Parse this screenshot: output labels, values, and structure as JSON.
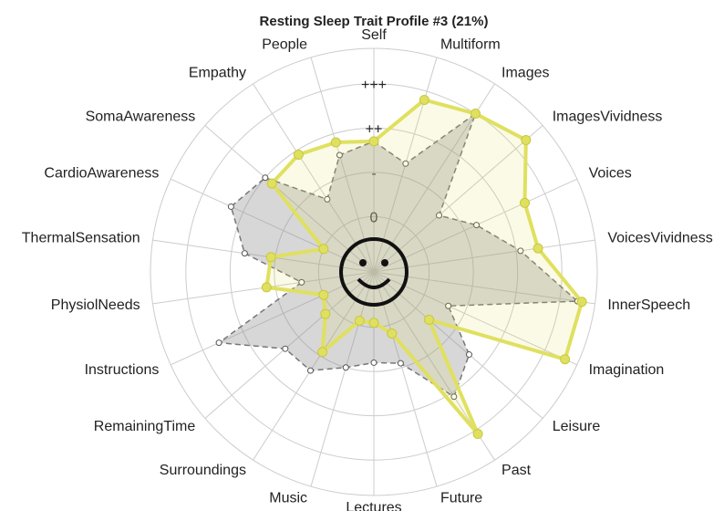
{
  "chart_data": {
    "type": "radar",
    "title": "Resting Sleep Trait Profile #3 (21%)",
    "categories": [
      "Self",
      "Multiform",
      "Images",
      "ImagesVividness",
      "Voices",
      "VoicesVividness",
      "InnerSpeech",
      "Imagination",
      "Leisure",
      "Past",
      "Future",
      "Lectures",
      "Music",
      "Surroundings",
      "RemainingTime",
      "Instructions",
      "PhysiolNeeds",
      "ThermalSensation",
      "CardioAwareness",
      "SomaAwareness",
      "Empathy",
      "People"
    ],
    "ylim": [
      -1.25,
      3.8
    ],
    "yticks": [
      0,
      {
        "value": 1,
        "label": "-"
      },
      {
        "value": 2,
        "label": "++"
      },
      {
        "value": 3,
        "label": "+++"
      }
    ],
    "grid": true,
    "series": [
      {
        "color": "#8c8c8c",
        "values": [
          1.7,
          1.3,
          3.0,
          0.7,
          1.3,
          2.1,
          3.4,
          0.6,
          1.6,
          2.1,
          0.9,
          0.8,
          1.0,
          1.4,
          1.4,
          2.6,
          0.4,
          1.7,
          2.3,
          2.0,
          0.7,
          1.5
        ]
      },
      {
        "color": "#e0e060",
        "values": [
          1.7,
          2.8,
          3.0,
          3.3,
          2.5,
          2.5,
          3.5,
          3.5,
          0.4,
          3.1,
          0.2,
          -0.1,
          -0.1,
          0.9,
          0.2,
          0.0,
          1.2,
          1.1,
          0.0,
          1.8,
          1.9,
          1.8
        ]
      }
    ]
  }
}
